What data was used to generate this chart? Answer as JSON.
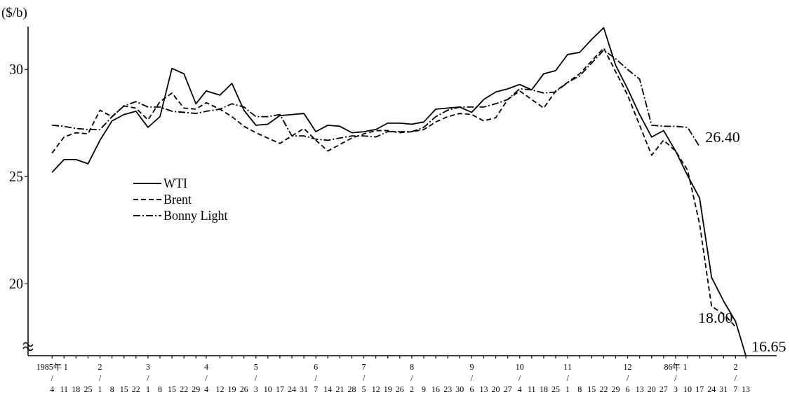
{
  "chart_data": {
    "type": "line",
    "ylabel": "($/b)",
    "x": [
      "1985-01-04",
      "1985-01-11",
      "1985-01-18",
      "1985-01-25",
      "1985-02-01",
      "1985-02-08",
      "1985-02-15",
      "1985-02-22",
      "1985-03-01",
      "1985-03-08",
      "1985-03-15",
      "1985-03-22",
      "1985-03-29",
      "1985-04-04",
      "1985-04-12",
      "1985-04-19",
      "1985-04-26",
      "1985-05-03",
      "1985-05-10",
      "1985-05-17",
      "1985-05-24",
      "1985-05-31",
      "1985-06-07",
      "1985-06-14",
      "1985-06-21",
      "1985-06-28",
      "1985-07-05",
      "1985-07-12",
      "1985-07-19",
      "1985-07-26",
      "1985-08-02",
      "1985-08-09",
      "1985-08-16",
      "1985-08-23",
      "1985-08-30",
      "1985-09-06",
      "1985-09-13",
      "1985-09-20",
      "1985-09-27",
      "1985-10-04",
      "1985-10-11",
      "1985-10-18",
      "1985-10-25",
      "1985-11-01",
      "1985-11-08",
      "1985-11-15",
      "1985-11-22",
      "1985-11-29",
      "1985-12-06",
      "1985-12-13",
      "1985-12-20",
      "1985-12-27",
      "1986-01-03",
      "1986-01-10",
      "1986-01-17",
      "1986-01-24",
      "1986-01-31",
      "1986-02-07",
      "1986-02-13"
    ],
    "series": [
      {
        "name": "WTI",
        "color": "#000000",
        "line_style": "solid",
        "values": [
          25.2,
          25.8,
          25.8,
          25.6,
          26.7,
          27.6,
          27.9,
          28.05,
          27.3,
          27.8,
          30.05,
          29.8,
          28.4,
          29.0,
          28.8,
          29.35,
          28.1,
          27.4,
          27.45,
          27.85,
          27.9,
          27.95,
          27.1,
          27.4,
          27.35,
          27.05,
          27.1,
          27.2,
          27.5,
          27.5,
          27.45,
          27.55,
          28.15,
          28.2,
          28.25,
          28.0,
          28.6,
          28.95,
          29.1,
          29.3,
          29.05,
          29.8,
          29.95,
          30.7,
          30.8,
          31.4,
          31.95,
          30.2,
          29.1,
          27.9,
          26.85,
          27.15,
          26.2,
          25.05,
          24.0,
          20.3,
          19.2,
          18.25,
          16.65
        ]
      },
      {
        "name": "Brent",
        "color": "#000000",
        "line_style": "dashed",
        "values": [
          26.1,
          26.85,
          27.05,
          27.0,
          28.1,
          27.8,
          28.3,
          28.2,
          27.65,
          28.5,
          28.9,
          28.2,
          28.15,
          28.45,
          28.15,
          27.8,
          27.35,
          27.05,
          26.8,
          26.55,
          26.9,
          27.25,
          26.7,
          26.2,
          26.5,
          26.8,
          27.0,
          27.15,
          27.15,
          27.05,
          27.1,
          27.2,
          27.55,
          27.8,
          27.95,
          27.9,
          27.6,
          27.75,
          28.6,
          29.0,
          28.6,
          28.2,
          29.0,
          29.4,
          29.8,
          30.4,
          31.0,
          29.9,
          28.8,
          27.4,
          26.0,
          26.7,
          26.2,
          25.3,
          22.8,
          18.95,
          18.6,
          18.0,
          null
        ]
      },
      {
        "name": "Bonny Light",
        "color": "#000000",
        "line_style": "dashdot",
        "values": [
          27.4,
          27.35,
          27.25,
          27.2,
          27.2,
          27.8,
          28.3,
          28.5,
          28.25,
          28.25,
          28.05,
          28.0,
          27.95,
          28.05,
          28.15,
          28.4,
          28.25,
          27.8,
          27.8,
          27.9,
          26.9,
          26.9,
          26.75,
          26.7,
          26.8,
          26.9,
          26.9,
          26.85,
          27.1,
          27.1,
          27.1,
          27.3,
          27.8,
          28.1,
          28.25,
          28.25,
          28.25,
          28.4,
          28.6,
          29.1,
          29.05,
          28.9,
          28.95,
          29.4,
          29.7,
          30.3,
          30.9,
          30.5,
          30.0,
          29.55,
          27.4,
          27.35,
          27.35,
          27.3,
          26.4,
          null,
          null,
          null,
          null
        ]
      }
    ],
    "xlim": [
      "1984-12-21",
      "1986-03-03"
    ],
    "xticks": [
      {
        "value": "1985-01-04",
        "label": "1985年 1/4"
      },
      {
        "value": "1985-01-11",
        "label": "11"
      },
      {
        "value": "1985-01-18",
        "label": "18"
      },
      {
        "value": "1985-01-25",
        "label": "25"
      },
      {
        "value": "1985-02-01",
        "label": "2/1"
      },
      {
        "value": "1985-02-08",
        "label": "8"
      },
      {
        "value": "1985-02-15",
        "label": "15"
      },
      {
        "value": "1985-02-22",
        "label": "22"
      },
      {
        "value": "1985-03-01",
        "label": "3/1"
      },
      {
        "value": "1985-03-08",
        "label": "8"
      },
      {
        "value": "1985-03-15",
        "label": "15"
      },
      {
        "value": "1985-03-22",
        "label": "22"
      },
      {
        "value": "1985-03-29",
        "label": "29"
      },
      {
        "value": "1985-04-04",
        "label": "4/4"
      },
      {
        "value": "1985-04-12",
        "label": "12"
      },
      {
        "value": "1985-04-19",
        "label": "19"
      },
      {
        "value": "1985-04-26",
        "label": "26"
      },
      {
        "value": "1985-05-03",
        "label": "5/3"
      },
      {
        "value": "1985-05-10",
        "label": "10"
      },
      {
        "value": "1985-05-17",
        "label": "17"
      },
      {
        "value": "1985-05-24",
        "label": "24"
      },
      {
        "value": "1985-05-31",
        "label": "31"
      },
      {
        "value": "1985-06-07",
        "label": "6/7"
      },
      {
        "value": "1985-06-14",
        "label": "14"
      },
      {
        "value": "1985-06-21",
        "label": "21"
      },
      {
        "value": "1985-06-28",
        "label": "28"
      },
      {
        "value": "1985-07-05",
        "label": "7/5"
      },
      {
        "value": "1985-07-12",
        "label": "12"
      },
      {
        "value": "1985-07-19",
        "label": "19"
      },
      {
        "value": "1985-07-26",
        "label": "26"
      },
      {
        "value": "1985-08-02",
        "label": "8/2"
      },
      {
        "value": "1985-08-09",
        "label": "9"
      },
      {
        "value": "1985-08-16",
        "label": "16"
      },
      {
        "value": "1985-08-23",
        "label": "23"
      },
      {
        "value": "1985-08-30",
        "label": "30"
      },
      {
        "value": "1985-09-06",
        "label": "9/6"
      },
      {
        "value": "1985-09-13",
        "label": "13"
      },
      {
        "value": "1985-09-20",
        "label": "20"
      },
      {
        "value": "1985-09-27",
        "label": "27"
      },
      {
        "value": "1985-10-04",
        "label": "10/4"
      },
      {
        "value": "1985-10-11",
        "label": "11"
      },
      {
        "value": "1985-10-18",
        "label": "18"
      },
      {
        "value": "1985-10-25",
        "label": "25"
      },
      {
        "value": "1985-11-01",
        "label": "11/1"
      },
      {
        "value": "1985-11-08",
        "label": "8"
      },
      {
        "value": "1985-11-15",
        "label": "15"
      },
      {
        "value": "1985-11-22",
        "label": "22"
      },
      {
        "value": "1985-11-29",
        "label": "29"
      },
      {
        "value": "1985-12-06",
        "label": "12/6"
      },
      {
        "value": "1985-12-13",
        "label": "13"
      },
      {
        "value": "1985-12-20",
        "label": "20"
      },
      {
        "value": "1985-12-27",
        "label": "27"
      },
      {
        "value": "1986-01-03",
        "label": "86年 1/3"
      },
      {
        "value": "1986-01-10",
        "label": "10"
      },
      {
        "value": "1986-01-17",
        "label": "17"
      },
      {
        "value": "1986-01-24",
        "label": "24"
      },
      {
        "value": "1986-01-31",
        "label": "31"
      },
      {
        "value": "1986-02-07",
        "label": "2/7"
      },
      {
        "value": "1986-02-13",
        "label": "13"
      }
    ],
    "ylim": [
      16.65,
      32.0
    ],
    "yticks": [
      20,
      25,
      30
    ],
    "legend": "left",
    "annotations": [
      {
        "text": "26.40",
        "x": "1986-01-17",
        "y": 26.4
      },
      {
        "text": "18.00",
        "x": "1986-02-07",
        "y": 18.0
      },
      {
        "text": "16.65",
        "x": "1986-02-13",
        "y": 16.65
      }
    ]
  }
}
